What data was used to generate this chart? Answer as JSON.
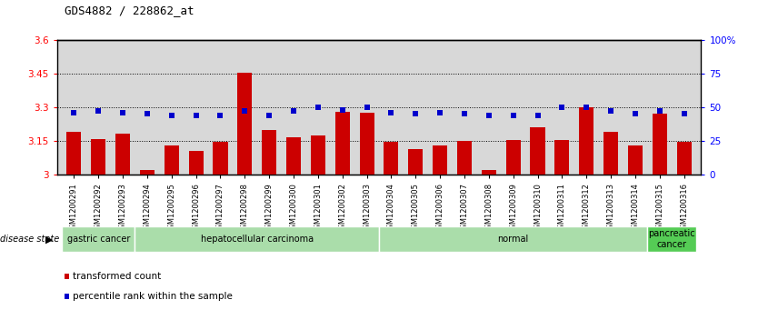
{
  "title": "GDS4882 / 228862_at",
  "samples": [
    "GSM1200291",
    "GSM1200292",
    "GSM1200293",
    "GSM1200294",
    "GSM1200295",
    "GSM1200296",
    "GSM1200297",
    "GSM1200298",
    "GSM1200299",
    "GSM1200300",
    "GSM1200301",
    "GSM1200302",
    "GSM1200303",
    "GSM1200304",
    "GSM1200305",
    "GSM1200306",
    "GSM1200307",
    "GSM1200308",
    "GSM1200309",
    "GSM1200310",
    "GSM1200311",
    "GSM1200312",
    "GSM1200313",
    "GSM1200314",
    "GSM1200315",
    "GSM1200316"
  ],
  "bar_values": [
    3.19,
    3.16,
    3.185,
    3.02,
    3.13,
    3.105,
    3.148,
    3.455,
    3.2,
    3.165,
    3.175,
    3.28,
    3.275,
    3.148,
    3.115,
    3.13,
    3.152,
    3.02,
    3.155,
    3.21,
    3.155,
    3.3,
    3.19,
    3.13,
    3.27,
    3.145
  ],
  "percentile_values": [
    46,
    47,
    46,
    45,
    44,
    44,
    44,
    47,
    44,
    47,
    50,
    48,
    50,
    46,
    45,
    46,
    45,
    44,
    44,
    44,
    50,
    50,
    47,
    45,
    47,
    45
  ],
  "ylim_left": [
    3.0,
    3.6
  ],
  "ylim_right": [
    0,
    100
  ],
  "yticks_left": [
    3.0,
    3.15,
    3.3,
    3.45,
    3.6
  ],
  "ytick_labels_left": [
    "3",
    "3.15",
    "3.3",
    "3.45",
    "3.6"
  ],
  "yticks_right": [
    0,
    25,
    50,
    75,
    100
  ],
  "ytick_labels_right": [
    "0",
    "25",
    "50",
    "75",
    "100%"
  ],
  "hlines": [
    3.15,
    3.3,
    3.45
  ],
  "bar_color": "#cc0000",
  "percentile_color": "#0000cc",
  "bg_color": "#ffffff",
  "plot_bg_color": "#d8d8d8",
  "group_boundaries": [
    {
      "start": 0,
      "end": 3,
      "label": "gastric cancer",
      "color": "#aaddaa"
    },
    {
      "start": 3,
      "end": 13,
      "label": "hepatocellular carcinoma",
      "color": "#aaddaa"
    },
    {
      "start": 13,
      "end": 24,
      "label": "normal",
      "color": "#aaddaa"
    },
    {
      "start": 24,
      "end": 26,
      "label": "pancreatic\ncancer",
      "color": "#55cc55"
    }
  ]
}
